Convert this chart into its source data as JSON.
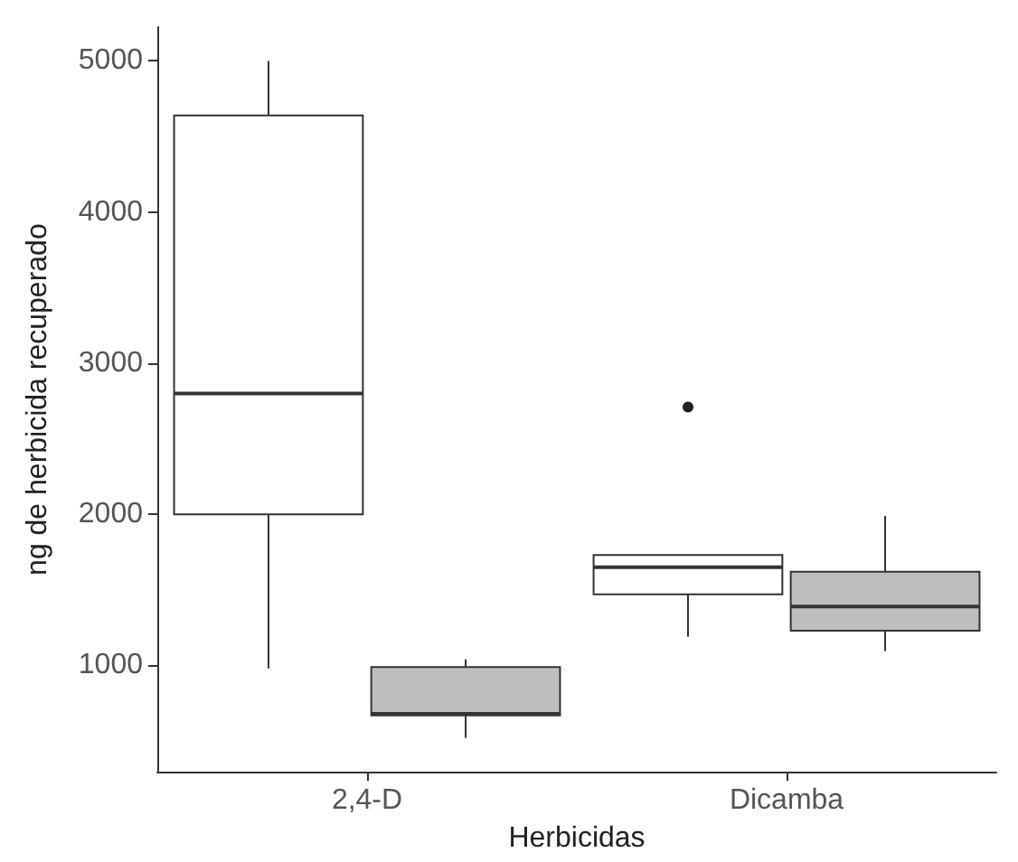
{
  "chart_data": {
    "type": "box",
    "xlabel": "Herbicidas",
    "ylabel": "ng de herbicida recuperado",
    "categories": [
      "2,4-D",
      "Dicamba"
    ],
    "series": [
      {
        "color": "#ffffff",
        "boxes": [
          {
            "low": 980,
            "q1": 2000,
            "median": 2800,
            "q3": 4640,
            "high": 5000
          },
          {
            "low": 1190,
            "q1": 1470,
            "median": 1650,
            "q3": 1730,
            "high": 1730,
            "outliers": [
              2710
            ]
          }
        ]
      },
      {
        "color": "#bebebe",
        "boxes": [
          {
            "low": 520,
            "q1": 670,
            "median": 680,
            "q3": 990,
            "high": 1040
          },
          {
            "low": 1095,
            "q1": 1230,
            "median": 1390,
            "q3": 1620,
            "high": 1990
          }
        ]
      }
    ],
    "ylim": [
      296,
      5224
    ],
    "yticks": [
      1000,
      2000,
      3000,
      4000,
      5000
    ],
    "grid": false
  }
}
